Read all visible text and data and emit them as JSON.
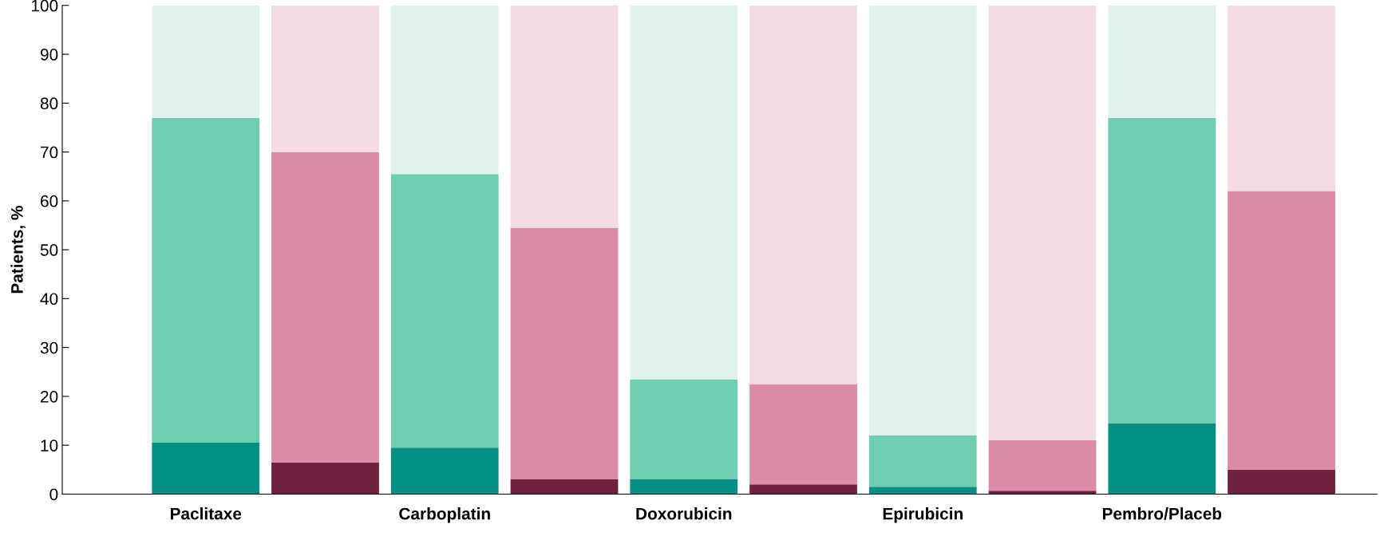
{
  "chart_data": {
    "type": "bar",
    "stacked": true,
    "ylabel": "Patients, %",
    "categories": [
      "Paclitaxe",
      null,
      "Carboplatin",
      null,
      "Doxorubicin",
      null,
      "Epirubicin",
      null,
      "Pembro/Placeb",
      null
    ],
    "ylim": [
      0,
      100
    ],
    "yticks": [
      0,
      10,
      20,
      30,
      40,
      50,
      60,
      70,
      80,
      90,
      100
    ],
    "grid": false,
    "legend": false,
    "series": [
      {
        "colors": [
          "#039083",
          "#6e2140",
          "#039083",
          "#6e2140",
          "#039083",
          "#6e2140",
          "#039083",
          "#6e2140",
          "#039083",
          "#6e2140"
        ],
        "values": [
          10.5,
          6.5,
          9.5,
          3,
          3,
          2,
          1.5,
          0.7,
          14.5,
          5
        ]
      },
      {
        "colors": [
          "#6ecdb2",
          "#db8aa7",
          "#6ecdb2",
          "#db8aa7",
          "#6ecdb2",
          "#db8aa7",
          "#6ecdb2",
          "#db8aa7",
          "#6ecdb2",
          "#db8aa7"
        ],
        "values": [
          66.5,
          63.5,
          56,
          51.5,
          20.5,
          20.5,
          10.5,
          10.3,
          62.5,
          57
        ]
      },
      {
        "colors": [
          "#dff3ee",
          "#f2dbe3",
          "#dff3ee",
          "#f2dbe3",
          "#dff3ee",
          "#f2dbe3",
          "#dff3ee",
          "#f2dbe3",
          "#dff3ee",
          "#f2dbe3"
        ],
        "values": [
          23,
          30,
          34.5,
          45.5,
          76.5,
          77.5,
          88,
          89,
          23,
          38
        ]
      }
    ]
  }
}
